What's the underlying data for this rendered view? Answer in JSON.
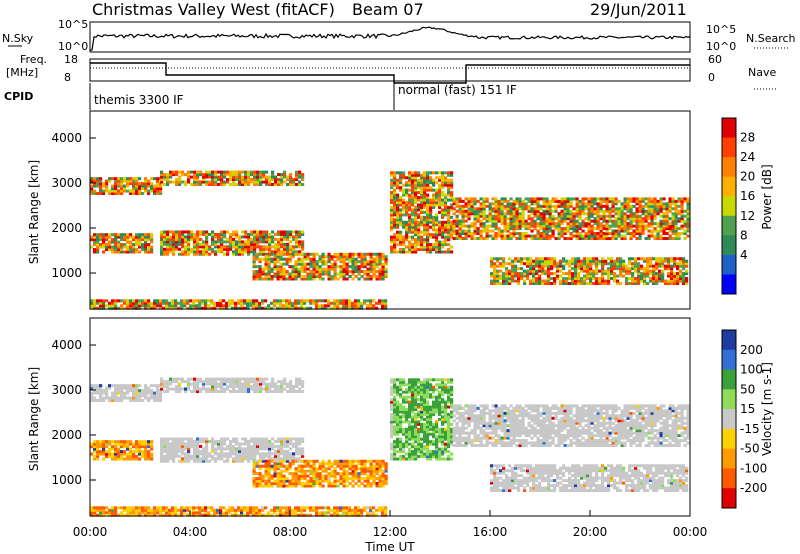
{
  "header": {
    "title": "Christmas Valley West (fitACF)",
    "beam": "Beam 07",
    "date": "29/Jun/2011"
  },
  "top_panels": {
    "nsky_label": "N.Sky",
    "nsky_left_ticks": [
      "10^5",
      "10^0"
    ],
    "nsky_right_ticks": [
      "10^5",
      "10^0"
    ],
    "nsearch_label": "N.Search",
    "freq_label_line1": "Freq.",
    "freq_label_line2": "[MHz]",
    "freq_ticks": [
      "18",
      "8"
    ],
    "nave_ticks": [
      "60",
      "0"
    ],
    "nave_label": "Nave",
    "cpid_label": "CPID",
    "cpid_1": "themis 3300 IF",
    "cpid_2": "normal (fast) 151 IF"
  },
  "colors": {
    "power": [
      "#0000ff",
      "#1f5fc8",
      "#2e8b57",
      "#4ea24e",
      "#c8d800",
      "#ffb000",
      "#ff8000",
      "#ff4000",
      "#e00000"
    ],
    "velocity": [
      "#1e3ca0",
      "#2f6fd6",
      "#3aa03a",
      "#8fdc5a",
      "#c8c8c8",
      "#ffd000",
      "#ff9a00",
      "#ff5a00",
      "#e00000"
    ]
  },
  "chart_data": [
    {
      "type": "heatmap",
      "name": "power",
      "ylabel": "Slant Range [km]",
      "yticks": [
        "1000",
        "2000",
        "3000",
        "4000"
      ],
      "ylim": [
        200,
        4600
      ],
      "xlim": [
        0,
        24
      ],
      "colorbar_label": "Power [dB]",
      "colorbar_ticks": [
        "4",
        "8",
        "12",
        "16",
        "20",
        "24",
        "28"
      ],
      "colorbar_range": [
        0,
        30
      ]
    },
    {
      "type": "heatmap",
      "name": "velocity",
      "ylabel": "Slant Range [km]",
      "yticks": [
        "1000",
        "2000",
        "3000",
        "4000"
      ],
      "ylim": [
        200,
        4600
      ],
      "xlim": [
        0,
        24
      ],
      "colorbar_label": "Velocity [m s-1]",
      "colorbar_ticks": [
        "200",
        "100",
        "50",
        "15",
        "-15",
        "-50",
        "-100",
        "-200"
      ]
    }
  ],
  "xaxis": {
    "ticks": [
      "00:00",
      "04:00",
      "08:00",
      "12:00",
      "16:00",
      "20:00",
      "00:00"
    ],
    "label": "Time UT"
  }
}
